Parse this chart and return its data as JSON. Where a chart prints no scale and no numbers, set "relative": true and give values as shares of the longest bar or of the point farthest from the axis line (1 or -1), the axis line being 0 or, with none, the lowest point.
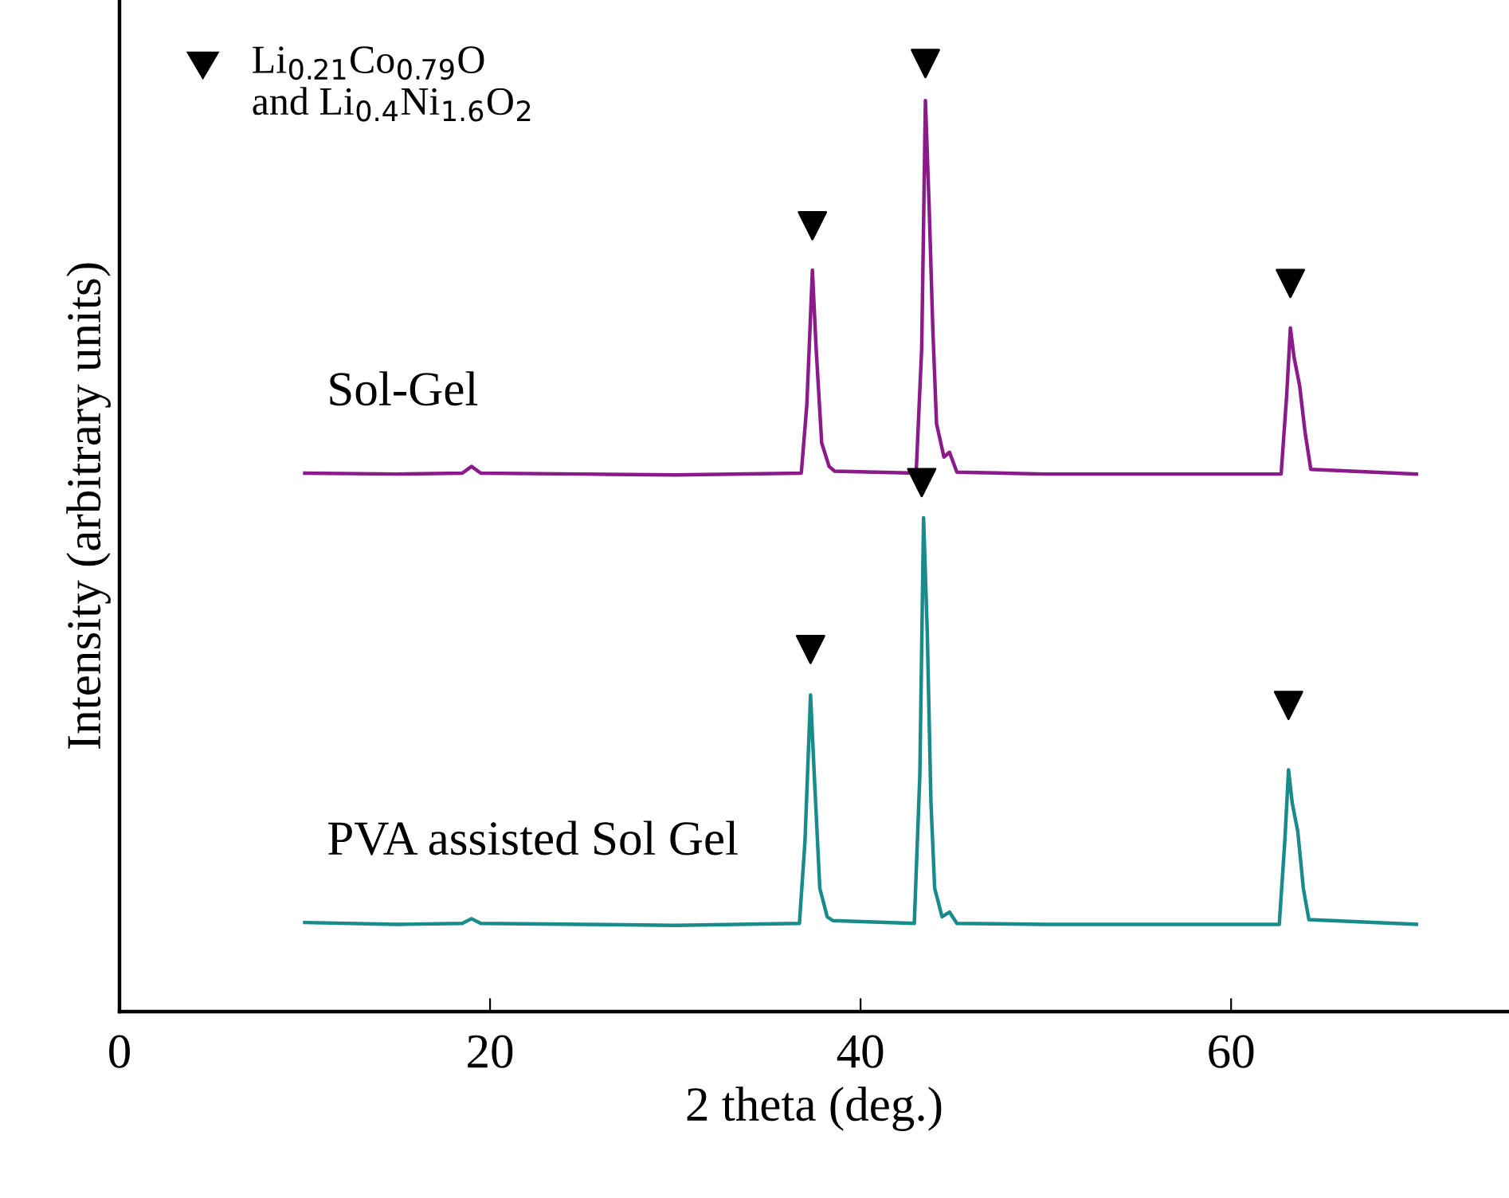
{
  "chart_data": {
    "type": "line",
    "relative": true,
    "xlabel": "2 theta (deg.)",
    "ylabel": "Intensity (arbitrary units)",
    "xlim": [
      0,
      75
    ],
    "xticks": [
      0,
      20,
      40,
      60
    ],
    "grid": false,
    "series": [
      {
        "name": "Sol-Gel",
        "color": "#8b1a8b",
        "x": [
          10,
          15,
          18.5,
          19,
          19.5,
          25,
          30,
          36.8,
          37.1,
          37.4,
          37.6,
          37.9,
          38.3,
          38.6,
          43.0,
          43.3,
          43.5,
          43.7,
          43.9,
          44.1,
          44.5,
          44.8,
          45.2,
          50,
          55,
          62.7,
          63.0,
          63.2,
          63.4,
          63.7,
          64.0,
          64.3,
          70
        ],
        "values": [
          0.568,
          0.567,
          0.568,
          0.575,
          0.568,
          0.567,
          0.566,
          0.568,
          0.64,
          0.782,
          0.7,
          0.6,
          0.575,
          0.57,
          0.568,
          0.7,
          0.961,
          0.85,
          0.72,
          0.62,
          0.585,
          0.59,
          0.569,
          0.567,
          0.567,
          0.567,
          0.65,
          0.721,
          0.69,
          0.66,
          0.61,
          0.572,
          0.567
        ]
      },
      {
        "name": "PVA assisted Sol Gel",
        "color": "#1a8b8b",
        "x": [
          10,
          15,
          18.5,
          19,
          19.5,
          25,
          30,
          36.7,
          37.0,
          37.3,
          37.5,
          37.8,
          38.2,
          38.5,
          42.9,
          43.2,
          43.4,
          43.6,
          43.8,
          44.0,
          44.4,
          44.8,
          45.2,
          50,
          55,
          62.6,
          62.9,
          63.1,
          63.3,
          63.6,
          63.9,
          64.2,
          70
        ],
        "values": [
          0.094,
          0.092,
          0.093,
          0.098,
          0.093,
          0.092,
          0.091,
          0.093,
          0.18,
          0.334,
          0.25,
          0.13,
          0.1,
          0.096,
          0.093,
          0.25,
          0.521,
          0.4,
          0.22,
          0.13,
          0.1,
          0.105,
          0.093,
          0.092,
          0.092,
          0.092,
          0.18,
          0.255,
          0.22,
          0.19,
          0.13,
          0.097,
          0.092
        ]
      },
      {
        "type": "scatter",
        "name": "Li$_{0.21}$Co$_{0.79}$O\nand Li$_{0.4}$Ni$_{1.6}$O$_{2}$",
        "color": "#000000",
        "marker": "triangle",
        "x": [
          37.4,
          43.5,
          63.2,
          37.3,
          43.3,
          63.1
        ],
        "values": [
          0.829,
          1.0,
          0.768,
          0.382,
          0.558,
          0.323
        ]
      }
    ]
  }
}
